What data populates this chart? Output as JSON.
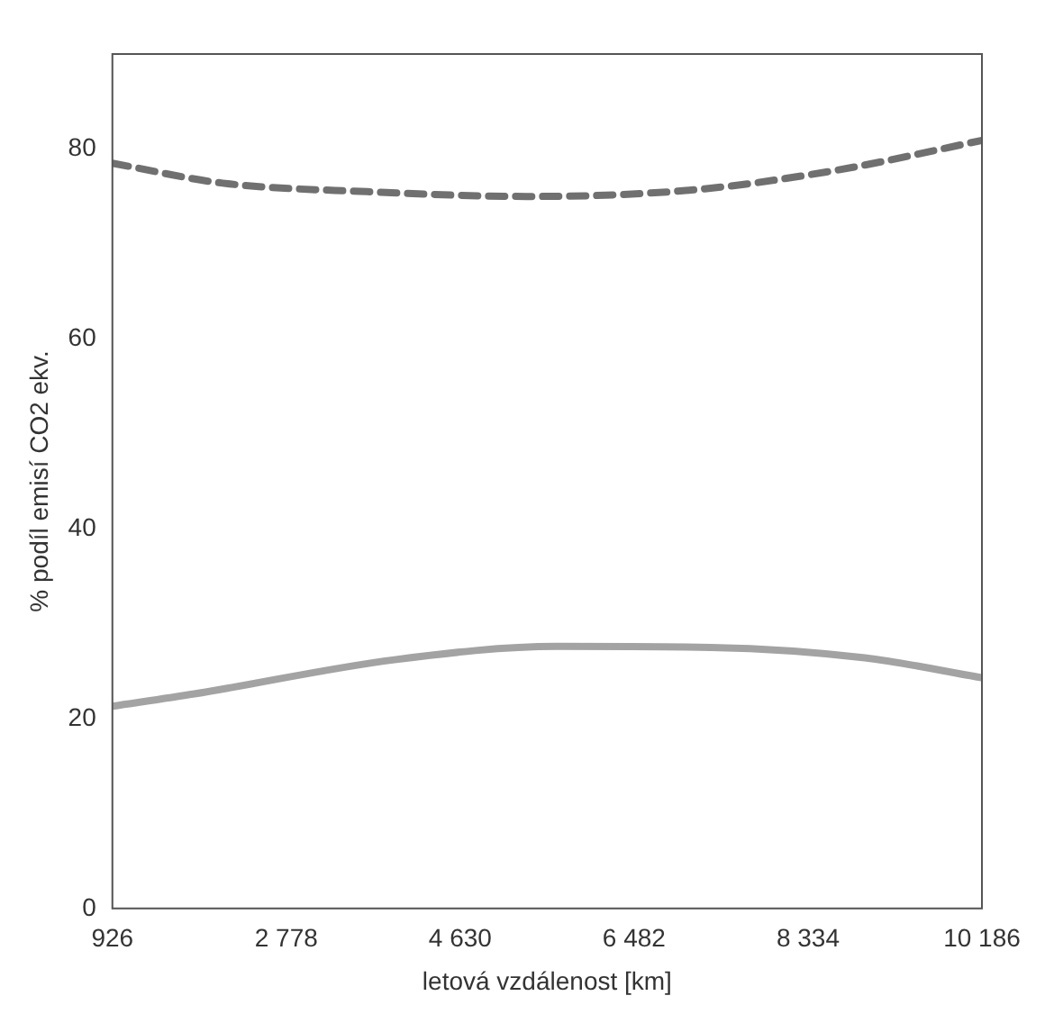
{
  "chart_data": {
    "type": "line",
    "xlabel": "letová vzdálenost [km]",
    "ylabel": "% podíl emisí CO2 ekv.",
    "xlim": [
      926,
      10186
    ],
    "xticks": [
      926,
      {
        "value": 2778,
        "label": "2 778"
      },
      {
        "value": 4630,
        "label": "4 630"
      },
      {
        "value": 6482,
        "label": "6 482"
      },
      {
        "value": 8334,
        "label": "8 334"
      },
      {
        "value": 10186,
        "label": "10 186"
      }
    ],
    "ylim": [
      0,
      90
    ],
    "yticks": [
      0,
      20,
      40,
      60,
      80
    ],
    "grid": false,
    "legend": false,
    "series": [
      {
        "color": "#a3a3a3",
        "line_style": "solid",
        "x": [
          926,
          1800,
          3930,
          5660,
          7300,
          8940,
          10186
        ],
        "values": [
          21.3,
          22.6,
          26.2,
          27.6,
          27.5,
          26.4,
          24.3
        ]
      },
      {
        "color": "#707070",
        "line_style": "dashed",
        "x": [
          926,
          2100,
          3640,
          5380,
          7120,
          8660,
          10186
        ],
        "values": [
          78.5,
          76.4,
          75.5,
          75,
          75.7,
          77.8,
          80.9
        ]
      }
    ]
  }
}
